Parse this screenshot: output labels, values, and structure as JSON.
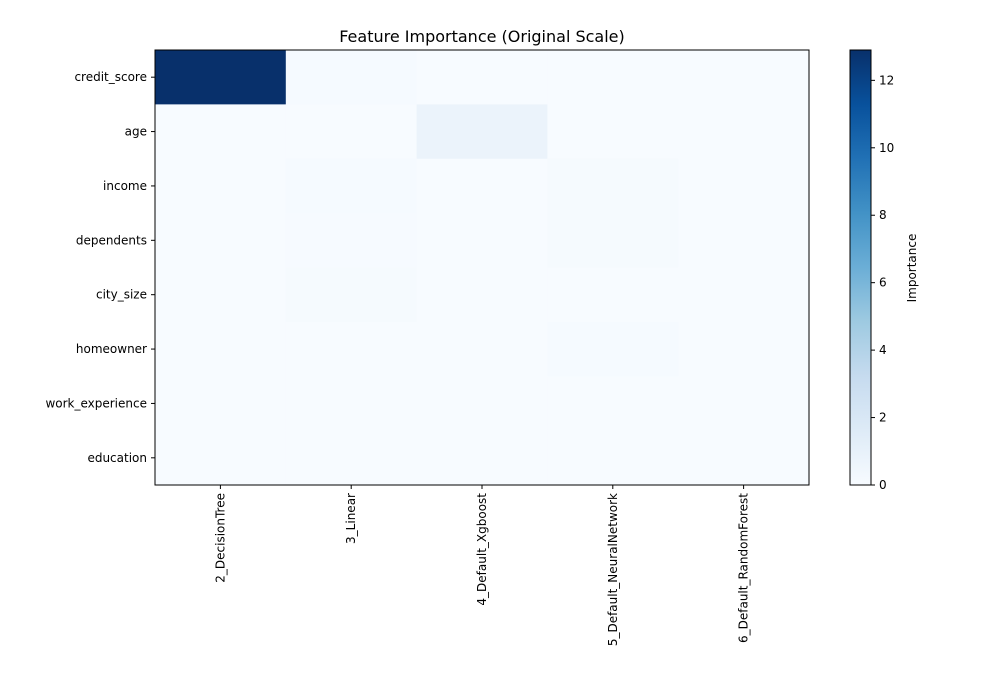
{
  "chart_data": {
    "type": "heatmap",
    "title": "Feature Importance (Original Scale)",
    "rows": [
      "credit_score",
      "age",
      "income",
      "dependents",
      "city_size",
      "homeowner",
      "work_experience",
      "education"
    ],
    "columns": [
      "2_DecisionTree",
      "3_Linear",
      "4_Default_Xgboost",
      "5_Default_NeuralNetwork",
      "6_Default_RandomForest"
    ],
    "values": [
      [
        12.9,
        0.1,
        0.02,
        0.02,
        0.03
      ],
      [
        0.03,
        0.03,
        0.8,
        0.03,
        0.02
      ],
      [
        0.02,
        0.1,
        0.03,
        0.12,
        0.01
      ],
      [
        0.02,
        0.08,
        0.02,
        0.12,
        0.01
      ],
      [
        0.02,
        0.12,
        0.02,
        0.02,
        0.01
      ],
      [
        0.02,
        0.02,
        0.02,
        0.1,
        0.01
      ],
      [
        0.02,
        0.02,
        0.02,
        0.02,
        0.01
      ],
      [
        0.02,
        0.02,
        0.02,
        0.02,
        0.01
      ]
    ],
    "colorbar": {
      "label": "Importance",
      "range": [
        0,
        12.9
      ],
      "ticks": [
        "0",
        "2",
        "4",
        "6",
        "8",
        "10",
        "12"
      ],
      "colormap": "Blues"
    },
    "grid": false
  }
}
